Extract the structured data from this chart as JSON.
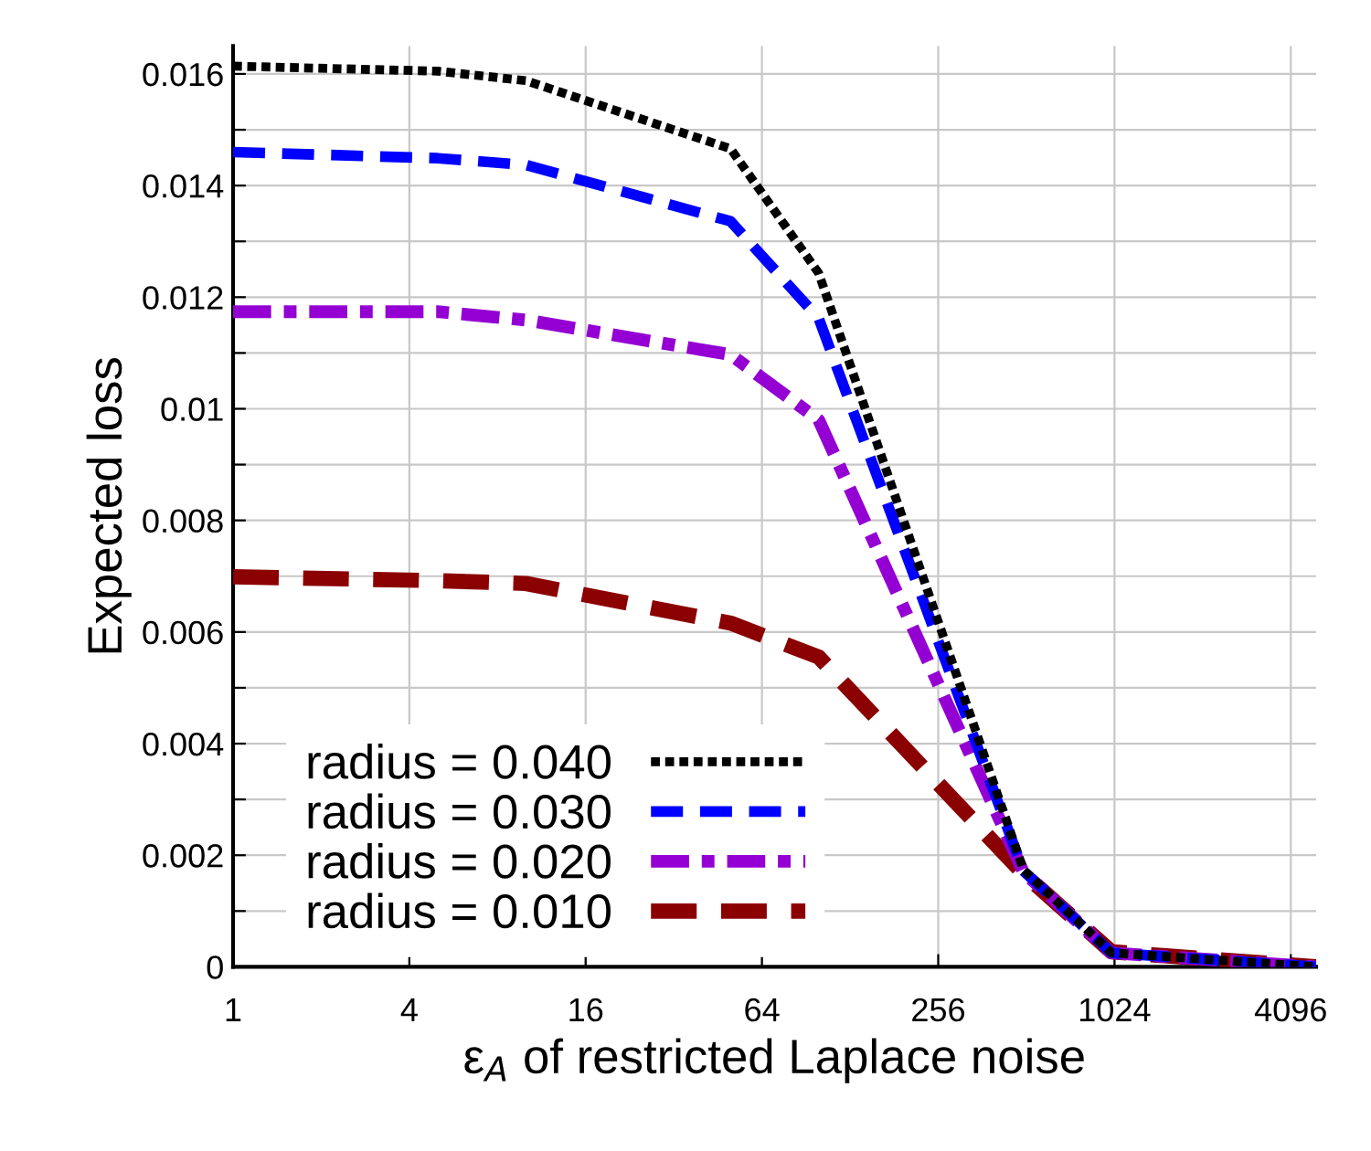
{
  "chart_data": {
    "type": "line",
    "xlabel": "ε$_{A}$ of restricted Laplace noise",
    "ylabel": "Expected loss",
    "x": [
      1,
      5,
      10,
      50,
      100,
      500,
      1000,
      5000
    ],
    "series": [
      {
        "name": "radius = 0.040",
        "color": "#000000",
        "line_style": "dotted",
        "values": [
          0.01614,
          0.01605,
          0.01588,
          0.01466,
          0.01243,
          0.00174,
          0.00025,
          0
        ]
      },
      {
        "name": "radius = 0.030",
        "color": "#0000ff",
        "line_style": "dashed",
        "values": [
          0.0146,
          0.01449,
          0.01437,
          0.01336,
          0.01162,
          0.00172,
          0.00025,
          0
        ]
      },
      {
        "name": "radius = 0.020",
        "color": "#9400d3",
        "line_style": "dashdot",
        "values": [
          0.01174,
          0.01174,
          0.01159,
          0.01097,
          0.0098,
          0.0017,
          0.00025,
          0
        ]
      },
      {
        "name": "radius = 0.010",
        "color": "#8b0000",
        "line_style": "dashed",
        "values": [
          0.00699,
          0.00692,
          0.00687,
          0.00616,
          0.00555,
          0.00167,
          0.00027,
          0
        ]
      }
    ],
    "log": "x",
    "xlim": [
      1,
      5000
    ],
    "xticks": [
      1,
      4,
      16,
      64,
      256,
      1024,
      4096
    ],
    "ylim": [
      0,
      0.0165
    ],
    "yticks": [
      0,
      {
        "value": 0.001,
        "label": null
      },
      0.002,
      {
        "value": 0.003,
        "label": null
      },
      0.004,
      {
        "value": 0.005,
        "label": null
      },
      0.006,
      {
        "value": 0.007,
        "label": null
      },
      0.008,
      {
        "value": 0.009,
        "label": null
      },
      0.01,
      {
        "value": 0.011,
        "label": null
      },
      0.012,
      {
        "value": 0.013,
        "label": null
      },
      0.014,
      {
        "value": 0.015,
        "label": null
      },
      0.016
    ],
    "grid": true,
    "legend": "bottom left",
    "marker": "none"
  }
}
